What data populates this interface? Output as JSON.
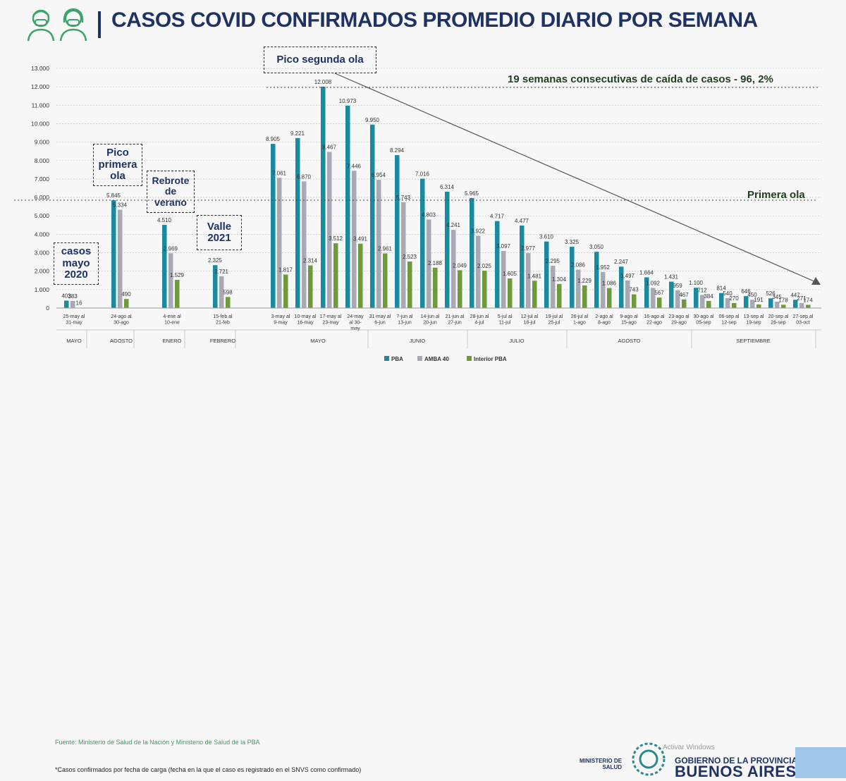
{
  "header": {
    "title": "CASOS COVID CONFIRMADOS PROMEDIO DIARIO POR SEMANA"
  },
  "annotations": {
    "pico_segunda": "Pico segunda ola",
    "pico_primera": "Pico primera ola",
    "rebrote": "Rebrote de verano",
    "valle": "Valle 2021",
    "casos_mayo": "casos mayo 2020",
    "semanas": "19 semanas consecutivas de caída de casos - 96, 2%",
    "primera_ola": "Primera  ola"
  },
  "footer": {
    "source": "Fuente: Ministerio de Salud de la Nación y Ministerio de Salud de la PBA",
    "footnote": "*Casos confirmados por fecha de carga (fecha en la que el caso es registrado en el SNVS como confirmado)",
    "ministry": "MINISTERIO DE SALUD",
    "gov_line1": "GOBIERNO DE LA PROVINCIA DE",
    "gov_line2": "BUENOS AIRES",
    "watermark": "Activar Windows"
  },
  "chart_data": {
    "type": "bar",
    "title": "CASOS COVID CONFIRMADOS PROMEDIO DIARIO POR SEMANA",
    "xlabel": "",
    "ylabel": "",
    "ylim": [
      0,
      13000
    ],
    "yticks": [
      "0",
      "1.000",
      "2.000",
      "3.000",
      "4.000",
      "5.000",
      "6.000",
      "7.000",
      "8.000",
      "9.000",
      "10.000",
      "11.000",
      "12.000",
      "13.000"
    ],
    "grid": true,
    "legend_position": "bottom",
    "colors": {
      "PBA": "#1a8aa0",
      "AMBA 40": "#a9a9b5",
      "Interior PBA": "#6e9a3c"
    },
    "categories": [
      "25-may al 31-may",
      "24-ago al 30-ago",
      "4-ene al 10-ene",
      "15-feb al 21-feb",
      "3-may al 9-may",
      "10-may al 16-may",
      "17-may al 23-may",
      "24-may al 30-may",
      "31-may al 6-jun",
      "7-jun al 13-jun",
      "14-jun al 20-jun",
      "21-jun al 27-jun",
      "28-jun al 4-jul",
      "5-jul al 11-jul",
      "12-jul al 18-jul",
      "19-jul al 25-jul",
      "26-jul al 1-ago",
      "2-ago al 8-ago",
      "9-ago al 15-ago",
      "16-ago al 22-ago",
      "23-ago al 29-ago",
      "30-ago al 05-sep",
      "06-sep al 12-sep",
      "13-sep al 19-sep",
      "20-sep al 26-sep",
      "27-sep al 03-oct"
    ],
    "category_lines": [
      [
        "25-may al",
        "31-may"
      ],
      [
        "24-ago al",
        "30-ago"
      ],
      [
        "4-ene al",
        "10-ene"
      ],
      [
        "15-feb al",
        "21-feb"
      ],
      [
        "3-may al",
        "9-may"
      ],
      [
        "10-may al",
        "16-may"
      ],
      [
        "17-may al",
        "23-may"
      ],
      [
        "24-may",
        "al 30-",
        "may"
      ],
      [
        "31-may al",
        "6-jun"
      ],
      [
        "7-jun al",
        "13-jun"
      ],
      [
        "14-jun al",
        "20-jun"
      ],
      [
        "21-jun al",
        "27-jun"
      ],
      [
        "28-jun al",
        "4-jul"
      ],
      [
        "5-jul al",
        "11-jul"
      ],
      [
        "12-jul al",
        "18-jul"
      ],
      [
        "19-jul al",
        "25-jul"
      ],
      [
        "26-jul al",
        "1-ago"
      ],
      [
        "2-ago al",
        "8-ago"
      ],
      [
        "9-ago al",
        "15-ago"
      ],
      [
        "16-ago al",
        "22-ago"
      ],
      [
        "23-ago al",
        "29-ago"
      ],
      [
        "30-ago al",
        "05-sep"
      ],
      [
        "06-sep al",
        "12-sep"
      ],
      [
        "13-sep al",
        "19-sep"
      ],
      [
        "20-sep al",
        "26-sep"
      ],
      [
        "27-sep al",
        "03-oct"
      ]
    ],
    "series": [
      {
        "name": "PBA",
        "values": [
          403,
          5845,
          4510,
          2325,
          8905,
          9221,
          12008,
          10973,
          9950,
          8294,
          7016,
          6314,
          5965,
          4717,
          4477,
          3610,
          3325,
          3050,
          2247,
          1664,
          1431,
          1100,
          814,
          646,
          526,
          447
        ],
        "labels": [
          "403",
          "5.845",
          "4.510",
          "2.325",
          "8.905",
          "9.221",
          "12.008",
          "10.973",
          "9.950",
          "8.294",
          "7.016",
          "6.314",
          "5.965",
          "4.717",
          "4.477",
          "3.610",
          "3.325",
          "3.050",
          "2.247",
          "1.664",
          "1.431",
          "1.100",
          "814",
          "646",
          "526",
          "447"
        ]
      },
      {
        "name": "AMBA 40",
        "values": [
          383,
          5334,
          2969,
          1721,
          7061,
          6870,
          8467,
          7446,
          6954,
          5743,
          4803,
          4241,
          3922,
          3097,
          2977,
          2295,
          2086,
          1952,
          1497,
          1092,
          959,
          712,
          540,
          450,
          345,
          271
        ],
        "labels": [
          "383",
          "5.334",
          "2.969",
          "1.721",
          "7.061",
          "6.870",
          "8.467",
          "7.446",
          "6.954",
          "5.743",
          "4.803",
          "4.241",
          "3.922",
          "3.097",
          "2.977",
          "2.295",
          "2.086",
          "1.952",
          "1.497",
          "1.092",
          "959",
          "712",
          "540",
          "450",
          "345",
          "271"
        ]
      },
      {
        "name": "Interior PBA",
        "values": [
          16,
          490,
          1529,
          598,
          1817,
          2314,
          3512,
          3491,
          2961,
          2523,
          2188,
          2049,
          2025,
          1605,
          1481,
          1304,
          1229,
          1086,
          743,
          567,
          467,
          384,
          270,
          191,
          178,
          174
        ],
        "labels": [
          "16",
          "490",
          "1.529",
          "598",
          "1.817",
          "2.314",
          "3.512",
          "3.491",
          "2.961",
          "2.523",
          "2.188",
          "2.049",
          "2.025",
          "1.605",
          "1.481",
          "1.304",
          "1.229",
          "1.086",
          "743",
          "567",
          "467",
          "384",
          "270",
          "191",
          "178",
          "174"
        ]
      }
    ],
    "months": [
      {
        "label": "MAYO",
        "from": 0,
        "to": 0
      },
      {
        "label": "AGOSTO",
        "from": 1,
        "to": 1
      },
      {
        "label": "ENERO",
        "from": 2,
        "to": 2
      },
      {
        "label": "FEBRERO",
        "from": 3,
        "to": 3
      },
      {
        "label": "MAYO",
        "from": 4,
        "to": 7
      },
      {
        "label": "JUNIO",
        "from": 8,
        "to": 11
      },
      {
        "label": "JULIO",
        "from": 12,
        "to": 15
      },
      {
        "label": "AGOSTO",
        "from": 16,
        "to": 20
      },
      {
        "label": "SEPTIEMBRE",
        "from": 21,
        "to": 25
      }
    ]
  }
}
